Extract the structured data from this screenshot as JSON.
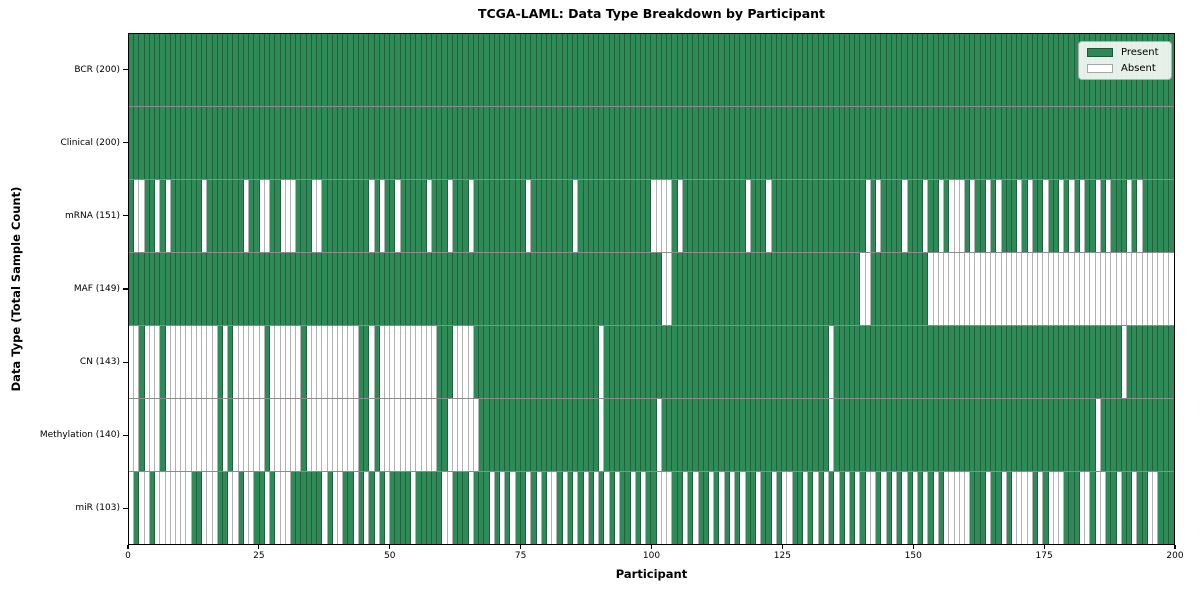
{
  "chart_data": {
    "type": "heatmap",
    "title": "TCGA-LAML: Data Type Breakdown by Participant",
    "xlabel": "Participant",
    "ylabel": "Data Type (Total Sample Count)",
    "x_range": [
      0,
      200
    ],
    "x_ticks": [
      0,
      25,
      50,
      75,
      100,
      125,
      150,
      175,
      200
    ],
    "n_participants": 200,
    "grid": "cell-edges",
    "legend_position": "upper-right",
    "legend": {
      "present_label": "Present",
      "absent_label": "Absent"
    },
    "colors": {
      "present": "#2e8b57",
      "absent": "#ffffff",
      "cell_edge": "rgba(0,0,0,0.30)",
      "row_divider": "rgba(0,0,0,0.45)",
      "frame": "#000000"
    },
    "rows": [
      {
        "label": "BCR (200)",
        "data_type": "BCR",
        "present_count": 200,
        "absent_cols": []
      },
      {
        "label": "Clinical (200)",
        "data_type": "Clinical",
        "present_count": 200,
        "absent_cols": []
      },
      {
        "label": "mRNA (151)",
        "data_type": "mRNA",
        "present_count": 151,
        "absent_cols": [
          [
            1,
            2
          ],
          5,
          7,
          14,
          22,
          [
            25,
            26
          ],
          [
            29,
            31
          ],
          [
            35,
            36
          ],
          46,
          48,
          51,
          57,
          61,
          65,
          76,
          85,
          [
            100,
            103
          ],
          105,
          118,
          122,
          141,
          143,
          148,
          152,
          155,
          [
            157,
            159
          ],
          161,
          164,
          166,
          170,
          172,
          175,
          178,
          180,
          182,
          185,
          187,
          191,
          193
        ]
      },
      {
        "label": "MAF (149)",
        "data_type": "MAF",
        "present_count": 149,
        "absent_cols": [
          [
            102,
            103
          ],
          [
            140,
            141
          ],
          [
            153,
            199
          ]
        ]
      },
      {
        "label": "CN (143)",
        "data_type": "CN",
        "present_count": 143,
        "absent_cols": [
          [
            0,
            1
          ],
          [
            3,
            5
          ],
          [
            7,
            16
          ],
          18,
          [
            20,
            25
          ],
          [
            27,
            32
          ],
          [
            34,
            43
          ],
          46,
          [
            48,
            58
          ],
          [
            62,
            65
          ],
          90,
          134,
          190
        ]
      },
      {
        "label": "Methylation (140)",
        "data_type": "Methylation",
        "present_count": 140,
        "absent_cols": [
          [
            0,
            1
          ],
          [
            3,
            5
          ],
          [
            7,
            16
          ],
          18,
          [
            20,
            25
          ],
          [
            27,
            32
          ],
          [
            34,
            43
          ],
          46,
          [
            48,
            58
          ],
          [
            61,
            66
          ],
          90,
          101,
          134,
          185
        ]
      },
      {
        "label": "miR (103)",
        "data_type": "miR",
        "present_count": 103,
        "absent_cols": [
          0,
          [
            2,
            3
          ],
          [
            5,
            11
          ],
          [
            14,
            16
          ],
          [
            19,
            20
          ],
          [
            22,
            23
          ],
          26,
          [
            28,
            30
          ],
          37,
          [
            39,
            40
          ],
          43,
          45,
          47,
          49,
          54,
          [
            60,
            61
          ],
          65,
          69,
          71,
          73,
          76,
          78,
          [
            80,
            81
          ],
          83,
          85,
          87,
          89,
          91,
          93,
          96,
          98,
          [
            101,
            103
          ],
          106,
          108,
          111,
          113,
          115,
          117,
          120,
          123,
          [
            125,
            126
          ],
          129,
          131,
          133,
          135,
          137,
          139,
          [
            141,
            142
          ],
          144,
          146,
          148,
          150,
          152,
          154,
          [
            156,
            160
          ],
          164,
          167,
          [
            169,
            172
          ],
          174,
          [
            176,
            178
          ],
          [
            182,
            183
          ],
          [
            185,
            186
          ],
          189,
          192,
          [
            195,
            196
          ]
        ]
      }
    ]
  }
}
